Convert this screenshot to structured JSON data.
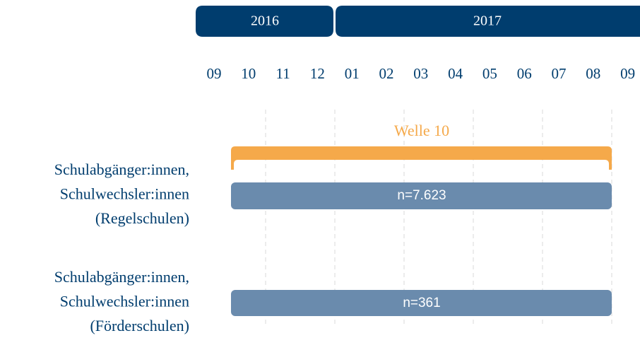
{
  "years": [
    {
      "label": "2016"
    },
    {
      "label": "2017"
    }
  ],
  "months": [
    "09",
    "10",
    "11",
    "12",
    "01",
    "02",
    "03",
    "04",
    "05",
    "06",
    "07",
    "08",
    "09"
  ],
  "wave": {
    "label": "Welle 10"
  },
  "rows": [
    {
      "label_lines": [
        "Schulabgänger:innen,",
        "Schulwechsler:innen",
        "(Regelschulen)"
      ],
      "n_label": "n=7.623"
    },
    {
      "label_lines": [
        "Schulabgänger:innen,",
        "Schulwechsler:innen",
        "(Förderschulen)"
      ],
      "n_label": "n=361"
    }
  ]
}
